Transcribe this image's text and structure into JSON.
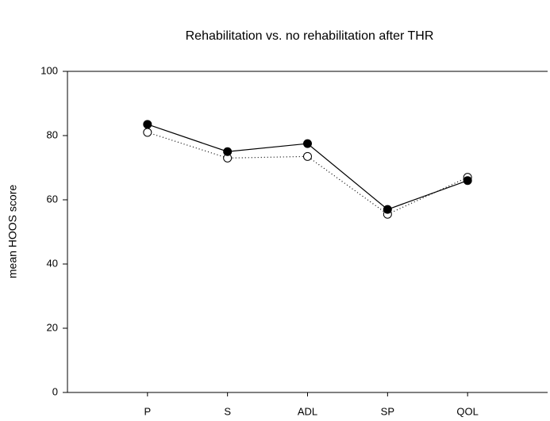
{
  "chart_data": {
    "type": "line",
    "title": "Rehabilitation vs. no rehabilitation after THR",
    "y_label": "mean HOOS score",
    "categories": [
      "P",
      "S",
      "ADL",
      "SP",
      "QOL"
    ],
    "series": [
      {
        "color": "#000000",
        "marker": "filled",
        "line": "solid",
        "values": [
          83.5,
          75,
          77.5,
          57,
          66
        ]
      },
      {
        "color": "#000000",
        "marker": "open",
        "line": "dotted",
        "values": [
          81,
          73,
          73.5,
          55.5,
          67
        ]
      }
    ],
    "ylim": [
      0,
      100
    ],
    "yticks": [
      0,
      20,
      40,
      60,
      80,
      100
    ],
    "grid": false
  }
}
